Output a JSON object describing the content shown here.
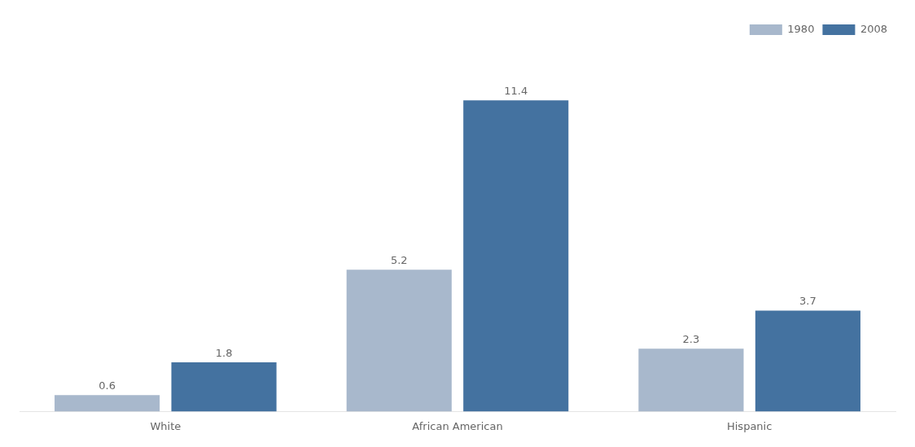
{
  "chart_data": {
    "type": "bar",
    "categories": [
      "White",
      "African American",
      "Hispanic"
    ],
    "series": [
      {
        "name": "1980",
        "color": "#a8b8cc",
        "values": [
          0.6,
          5.2,
          2.3
        ]
      },
      {
        "name": "2008",
        "color": "#4472a0",
        "values": [
          1.8,
          11.4,
          3.7
        ]
      }
    ],
    "ylim": [
      0,
      13.5
    ],
    "data_labels": true,
    "tick_labels": "x",
    "grid": false,
    "legend": "upper right"
  }
}
